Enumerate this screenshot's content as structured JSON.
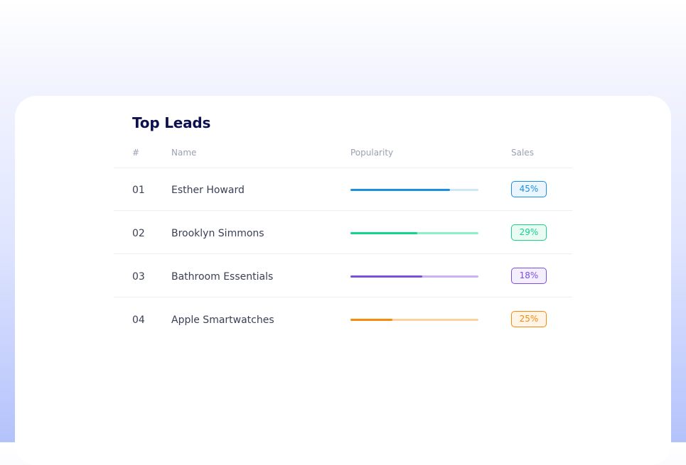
{
  "widget": {
    "title": "Top Leads",
    "columns": {
      "num": "#",
      "name": "Name",
      "popularity": "Popularity",
      "sales": "Sales"
    },
    "rows": [
      {
        "num": "01",
        "name": "Esther Howard",
        "popularity_pct": 78,
        "sales": "45%",
        "color": "#1c8fe0",
        "track_color": "#cfe6f7",
        "badge_bg": "#eaf5fd"
      },
      {
        "num": "02",
        "name": "Brooklyn Simmons",
        "popularity_pct": 52,
        "sales": "29%",
        "color": "#14d38a",
        "track_color": "#8cf0c8",
        "badge_bg": "#e9fbf3"
      },
      {
        "num": "03",
        "name": "Bathroom Essentials",
        "popularity_pct": 56,
        "sales": "18%",
        "color": "#7b4fe0",
        "track_color": "#c9b3f6",
        "badge_bg": "#f4effe"
      },
      {
        "num": "04",
        "name": "Apple Smartwatches",
        "popularity_pct": 33,
        "sales": "25%",
        "color": "#f58a0b",
        "track_color": "#fbd29d",
        "badge_bg": "#fff4e6"
      }
    ]
  }
}
